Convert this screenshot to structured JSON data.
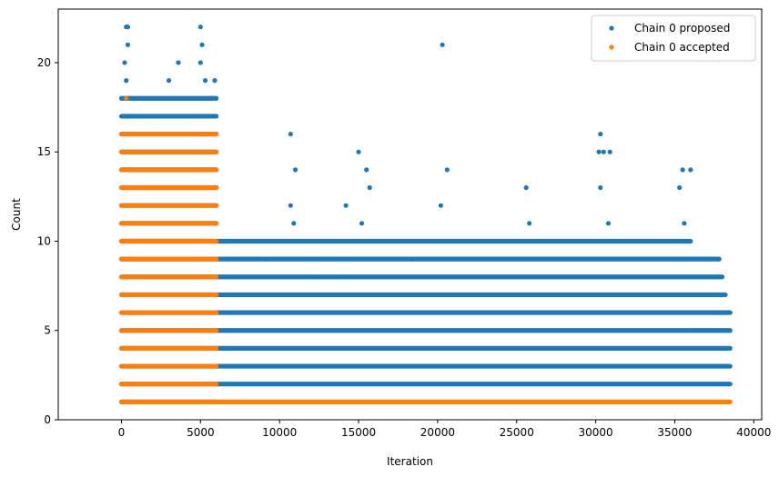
{
  "chart_data": {
    "type": "scatter",
    "xlabel": "Iteration",
    "ylabel": "Count",
    "xlim": [
      -4000,
      40500
    ],
    "ylim": [
      0,
      23
    ],
    "xticks": [
      0,
      5000,
      10000,
      15000,
      20000,
      25000,
      30000,
      35000,
      40000
    ],
    "yticks": [
      0,
      5,
      10,
      15,
      20
    ],
    "legend_position": "top-right",
    "grid": false,
    "series": [
      {
        "name": "Chain 0 proposed",
        "color": "#1f77b4",
        "bands": [
          {
            "y": 1,
            "x": [
              0,
              6000
            ]
          },
          {
            "y": 2,
            "x": [
              0,
              38500
            ]
          },
          {
            "y": 3,
            "x": [
              0,
              38500
            ]
          },
          {
            "y": 4,
            "x": [
              0,
              38500
            ]
          },
          {
            "y": 5,
            "x": [
              0,
              38500
            ]
          },
          {
            "y": 6,
            "x": [
              0,
              38500
            ]
          },
          {
            "y": 7,
            "x": [
              0,
              38200
            ]
          },
          {
            "y": 8,
            "x": [
              0,
              38000
            ]
          },
          {
            "y": 9,
            "x": [
              0,
              37800
            ]
          },
          {
            "y": 10,
            "x": [
              0,
              36000
            ]
          },
          {
            "y": 11,
            "x": [
              0,
              6000
            ]
          },
          {
            "y": 12,
            "x": [
              0,
              6000
            ]
          },
          {
            "y": 13,
            "x": [
              0,
              6000
            ]
          },
          {
            "y": 14,
            "x": [
              0,
              6000
            ]
          },
          {
            "y": 15,
            "x": [
              0,
              6000
            ]
          },
          {
            "y": 16,
            "x": [
              0,
              6000
            ]
          },
          {
            "y": 17,
            "x": [
              0,
              6000
            ]
          },
          {
            "y": 18,
            "x": [
              0,
              6000
            ]
          }
        ],
        "points": [
          [
            300,
            22
          ],
          [
            400,
            22
          ],
          [
            5000,
            22
          ],
          [
            400,
            21
          ],
          [
            5100,
            21
          ],
          [
            20300,
            21
          ],
          [
            200,
            20
          ],
          [
            3600,
            20
          ],
          [
            5000,
            20
          ],
          [
            300,
            19
          ],
          [
            3000,
            19
          ],
          [
            5300,
            19
          ],
          [
            5900,
            19
          ],
          [
            10700,
            16
          ],
          [
            30300,
            16
          ],
          [
            11000,
            14
          ],
          [
            15500,
            14
          ],
          [
            20600,
            14
          ],
          [
            35500,
            14
          ],
          [
            36000,
            14
          ],
          [
            15000,
            15
          ],
          [
            30200,
            15
          ],
          [
            30500,
            15
          ],
          [
            30900,
            15
          ],
          [
            15700,
            13
          ],
          [
            25600,
            13
          ],
          [
            30300,
            13
          ],
          [
            35300,
            13
          ],
          [
            10700,
            12
          ],
          [
            14200,
            12
          ],
          [
            20200,
            12
          ],
          [
            10900,
            11
          ],
          [
            15200,
            11
          ],
          [
            25800,
            11
          ],
          [
            30800,
            11
          ],
          [
            35600,
            11
          ],
          [
            9100,
            9
          ],
          [
            12400,
            8
          ],
          [
            13600,
            8
          ],
          [
            18300,
            9
          ],
          [
            23800,
            7
          ],
          [
            28500,
            7
          ],
          [
            33500,
            7
          ],
          [
            37800,
            9
          ]
        ]
      },
      {
        "name": "Chain 0 accepted",
        "color": "#ff7f0e",
        "bands": [
          {
            "y": 1,
            "x": [
              0,
              38500
            ]
          },
          {
            "y": 2,
            "x": [
              0,
              6000
            ]
          },
          {
            "y": 3,
            "x": [
              0,
              6000
            ]
          },
          {
            "y": 4,
            "x": [
              0,
              6000
            ]
          },
          {
            "y": 5,
            "x": [
              0,
              6000
            ]
          },
          {
            "y": 6,
            "x": [
              0,
              6000
            ]
          },
          {
            "y": 7,
            "x": [
              0,
              6000
            ]
          },
          {
            "y": 8,
            "x": [
              0,
              6000
            ]
          },
          {
            "y": 9,
            "x": [
              0,
              6000
            ]
          },
          {
            "y": 10,
            "x": [
              0,
              6000
            ]
          },
          {
            "y": 11,
            "x": [
              0,
              6000
            ]
          },
          {
            "y": 12,
            "x": [
              0,
              6000
            ]
          },
          {
            "y": 13,
            "x": [
              0,
              6000
            ]
          },
          {
            "y": 14,
            "x": [
              0,
              6000
            ]
          },
          {
            "y": 15,
            "x": [
              0,
              6000
            ]
          },
          {
            "y": 16,
            "x": [
              0,
              6000
            ]
          }
        ],
        "points": [
          [
            300,
            18
          ],
          [
            5900,
            16
          ],
          [
            5200,
            16
          ]
        ]
      }
    ]
  }
}
